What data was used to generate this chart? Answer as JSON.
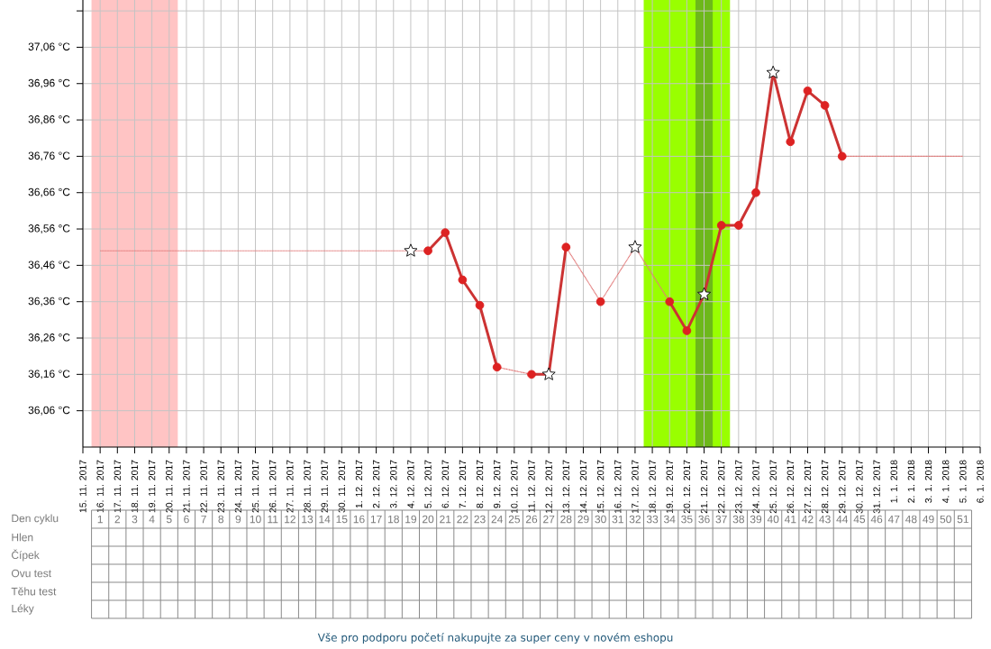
{
  "chart_data": {
    "type": "line",
    "xlim": [
      "2017-11-15",
      "2018-01-06"
    ],
    "xticks": [
      {
        "value": "2017-11-15",
        "label": "15. 11. 2017"
      },
      {
        "value": "2017-11-16",
        "label": "16. 11. 2017"
      },
      {
        "value": "2017-11-17",
        "label": "17. 11. 2017"
      },
      {
        "value": "2017-11-18",
        "label": "18. 11. 2017"
      },
      {
        "value": "2017-11-19",
        "label": "19. 11. 2017"
      },
      {
        "value": "2017-11-20",
        "label": "20. 11. 2017"
      },
      {
        "value": "2017-11-21",
        "label": "21. 11. 2017"
      },
      {
        "value": "2017-11-22",
        "label": "22. 11. 2017"
      },
      {
        "value": "2017-11-23",
        "label": "23. 11. 2017"
      },
      {
        "value": "2017-11-24",
        "label": "24. 11. 2017"
      },
      {
        "value": "2017-11-25",
        "label": "25. 11. 2017"
      },
      {
        "value": "2017-11-26",
        "label": "26. 11. 2017"
      },
      {
        "value": "2017-11-27",
        "label": "27. 11. 2017"
      },
      {
        "value": "2017-11-28",
        "label": "28. 11. 2017"
      },
      {
        "value": "2017-11-29",
        "label": "29. 11. 2017"
      },
      {
        "value": "2017-11-30",
        "label": "30. 11. 2017"
      },
      {
        "value": "2017-12-01",
        "label": "1. 12. 2017"
      },
      {
        "value": "2017-12-02",
        "label": "2. 12. 2017"
      },
      {
        "value": "2017-12-03",
        "label": "3. 12. 2017"
      },
      {
        "value": "2017-12-04",
        "label": "4. 12. 2017"
      },
      {
        "value": "2017-12-05",
        "label": "5. 12. 2017"
      },
      {
        "value": "2017-12-06",
        "label": "6. 12. 2017"
      },
      {
        "value": "2017-12-07",
        "label": "7. 12. 2017"
      },
      {
        "value": "2017-12-08",
        "label": "8. 12. 2017"
      },
      {
        "value": "2017-12-09",
        "label": "9. 12. 2017"
      },
      {
        "value": "2017-12-10",
        "label": "10. 12. 2017"
      },
      {
        "value": "2017-12-11",
        "label": "11. 12. 2017"
      },
      {
        "value": "2017-12-12",
        "label": "12. 12. 2017"
      },
      {
        "value": "2017-12-13",
        "label": "13. 12. 2017"
      },
      {
        "value": "2017-12-14",
        "label": "14. 12. 2017"
      },
      {
        "value": "2017-12-15",
        "label": "15. 12. 2017"
      },
      {
        "value": "2017-12-16",
        "label": "16. 12. 2017"
      },
      {
        "value": "2017-12-17",
        "label": "17. 12. 2017"
      },
      {
        "value": "2017-12-18",
        "label": "18. 12. 2017"
      },
      {
        "value": "2017-12-19",
        "label": "19. 12. 2017"
      },
      {
        "value": "2017-12-20",
        "label": "20. 12. 2017"
      },
      {
        "value": "2017-12-21",
        "label": "21. 12. 2017"
      },
      {
        "value": "2017-12-22",
        "label": "22. 12. 2017"
      },
      {
        "value": "2017-12-23",
        "label": "23. 12. 2017"
      },
      {
        "value": "2017-12-24",
        "label": "24. 12. 2017"
      },
      {
        "value": "2017-12-25",
        "label": "25. 12. 2017"
      },
      {
        "value": "2017-12-26",
        "label": "26. 12. 2017"
      },
      {
        "value": "2017-12-27",
        "label": "27. 12. 2017"
      },
      {
        "value": "2017-12-28",
        "label": "28. 12. 2017"
      },
      {
        "value": "2017-12-29",
        "label": "29. 12. 2017"
      },
      {
        "value": "2017-12-30",
        "label": "30. 12. 2017"
      },
      {
        "value": "2017-12-31",
        "label": "31. 12. 2017"
      },
      {
        "value": "2018-01-01",
        "label": "1. 1. 2018"
      },
      {
        "value": "2018-01-02",
        "label": "2. 1. 2018"
      },
      {
        "value": "2018-01-03",
        "label": "3. 1. 2018"
      },
      {
        "value": "2018-01-04",
        "label": "4. 1. 2018"
      },
      {
        "value": "2018-01-05",
        "label": "5. 1. 2018"
      },
      {
        "value": "2018-01-06",
        "label": "6. 1. 2018"
      }
    ],
    "ylim": [
      35.96,
      37.19
    ],
    "yticks": [
      {
        "value": 36.06,
        "label": "36,06 °C"
      },
      {
        "value": 36.16,
        "label": "36,16 °C"
      },
      {
        "value": 36.26,
        "label": "36,26 °C"
      },
      {
        "value": 36.36,
        "label": "36,36 °C"
      },
      {
        "value": 36.46,
        "label": "36,46 °C"
      },
      {
        "value": 36.56,
        "label": "36,56 °C"
      },
      {
        "value": 36.66,
        "label": "36,66 °C"
      },
      {
        "value": 36.76,
        "label": "36,76 °C"
      },
      {
        "value": 36.86,
        "label": "36,86 °C"
      },
      {
        "value": 36.96,
        "label": "36,96 °C"
      },
      {
        "value": 37.06,
        "label": "37,06 °C"
      },
      {
        "value": 37.16,
        "label": null
      }
    ],
    "grid": true,
    "x2lim": [
      "2017-11-15T12:00",
      "2018-01-05T12:00"
    ],
    "x2ticks": [
      {
        "value": "2017-11-16",
        "label": "1"
      },
      {
        "value": "2017-11-17",
        "label": "2"
      },
      {
        "value": "2017-11-18",
        "label": "3"
      },
      {
        "value": "2017-11-19",
        "label": "4"
      },
      {
        "value": "2017-11-20",
        "label": "5"
      },
      {
        "value": "2017-11-21",
        "label": "6"
      },
      {
        "value": "2017-11-22",
        "label": "7"
      },
      {
        "value": "2017-11-23",
        "label": "8"
      },
      {
        "value": "2017-11-24",
        "label": "9"
      },
      {
        "value": "2017-11-25",
        "label": "10"
      },
      {
        "value": "2017-11-26",
        "label": "11"
      },
      {
        "value": "2017-11-27",
        "label": "12"
      },
      {
        "value": "2017-11-28",
        "label": "13"
      },
      {
        "value": "2017-11-29",
        "label": "14"
      },
      {
        "value": "2017-11-30",
        "label": "15"
      },
      {
        "value": "2017-12-01",
        "label": "16"
      },
      {
        "value": "2017-12-02",
        "label": "17"
      },
      {
        "value": "2017-12-03",
        "label": "18"
      },
      {
        "value": "2017-12-04",
        "label": "19"
      },
      {
        "value": "2017-12-05",
        "label": "20"
      },
      {
        "value": "2017-12-06",
        "label": "21"
      },
      {
        "value": "2017-12-07",
        "label": "22"
      },
      {
        "value": "2017-12-08",
        "label": "23"
      },
      {
        "value": "2017-12-09",
        "label": "24"
      },
      {
        "value": "2017-12-10",
        "label": "25"
      },
      {
        "value": "2017-12-11",
        "label": "26"
      },
      {
        "value": "2017-12-12",
        "label": "27"
      },
      {
        "value": "2017-12-13",
        "label": "28"
      },
      {
        "value": "2017-12-14",
        "label": "29"
      },
      {
        "value": "2017-12-15",
        "label": "30"
      },
      {
        "value": "2017-12-16",
        "label": "31"
      },
      {
        "value": "2017-12-17",
        "label": "32"
      },
      {
        "value": "2017-12-18",
        "label": "33"
      },
      {
        "value": "2017-12-19",
        "label": "34"
      },
      {
        "value": "2017-12-20",
        "label": "35"
      },
      {
        "value": "2017-12-21",
        "label": "36"
      },
      {
        "value": "2017-12-22",
        "label": "37"
      },
      {
        "value": "2017-12-23",
        "label": "38"
      },
      {
        "value": "2017-12-24",
        "label": "39"
      },
      {
        "value": "2017-12-25",
        "label": "40"
      },
      {
        "value": "2017-12-26",
        "label": "41"
      },
      {
        "value": "2017-12-27",
        "label": "42"
      },
      {
        "value": "2017-12-28",
        "label": "43"
      },
      {
        "value": "2017-12-29",
        "label": "44"
      },
      {
        "value": "2017-12-30",
        "label": "45"
      },
      {
        "value": "2017-12-31",
        "label": "46"
      },
      {
        "value": "2018-01-01",
        "label": "47"
      },
      {
        "value": "2018-01-02",
        "label": "48"
      },
      {
        "value": "2018-01-03",
        "label": "49"
      },
      {
        "value": "2018-01-04",
        "label": "50"
      },
      {
        "value": "2018-01-05",
        "label": "51"
      }
    ],
    "bands": [
      {
        "axis": "x",
        "from": "2017-11-15T12:00",
        "to": "2017-11-20T12:00",
        "color": "#ffc4c4"
      },
      {
        "axis": "x",
        "from": "2017-12-17T12:00",
        "to": "2017-12-22T12:00",
        "color": "#99ff00"
      },
      {
        "axis": "x",
        "from": "2017-12-20T12:00",
        "to": "2017-12-21T12:00",
        "color": "#6db81a"
      }
    ],
    "series": [
      {
        "color": "#e27a7a",
        "line_style": "dotted",
        "marker": "none",
        "x": [
          "2017-11-16",
          "2017-12-04",
          "2017-12-05",
          "2017-12-06",
          "2017-12-09",
          "2017-12-11",
          "2017-12-12",
          "2017-12-13",
          "2017-12-15",
          "2017-12-17",
          "2017-12-19",
          "2017-12-20",
          "2017-12-29",
          "2018-01-05"
        ],
        "values": [
          36.5,
          36.5,
          36.5,
          null,
          36.18,
          36.16,
          null,
          36.51,
          36.36,
          36.51,
          36.36,
          null,
          36.76,
          36.76
        ]
      },
      {
        "color": "#cc3333",
        "line_style": "solid",
        "marker": "none",
        "x": [
          "2017-12-05",
          "2017-12-06",
          "2017-12-07",
          "2017-12-08",
          "2017-12-09",
          "2017-12-10",
          "2017-12-11",
          "2017-12-12",
          "2017-12-13",
          "2017-12-14",
          "2017-12-15",
          "2017-12-16",
          "2017-12-17",
          "2017-12-18",
          "2017-12-19",
          "2017-12-20",
          "2017-12-21",
          "2017-12-22",
          "2017-12-23",
          "2017-12-24",
          "2017-12-25",
          "2017-12-26",
          "2017-12-27",
          "2017-12-28",
          "2017-12-29"
        ],
        "values": [
          36.5,
          36.55,
          36.42,
          36.35,
          36.18,
          null,
          36.16,
          36.16,
          36.51,
          null,
          null,
          null,
          null,
          null,
          36.36,
          36.28,
          36.38,
          36.57,
          36.57,
          36.66,
          36.99,
          36.8,
          36.94,
          36.9,
          36.76
        ]
      },
      {
        "type": "scatter",
        "color": "#dd2222",
        "marker": "circle",
        "x": [
          "2017-12-05",
          "2017-12-06",
          "2017-12-07",
          "2017-12-08",
          "2017-12-09",
          "2017-12-11",
          "2017-12-13",
          "2017-12-15",
          "2017-12-19",
          "2017-12-20",
          "2017-12-22",
          "2017-12-23",
          "2017-12-24",
          "2017-12-26",
          "2017-12-27",
          "2017-12-28",
          "2017-12-29"
        ],
        "values": [
          36.5,
          36.55,
          36.42,
          36.35,
          36.18,
          36.16,
          36.51,
          36.36,
          36.36,
          36.28,
          36.57,
          36.57,
          36.66,
          36.8,
          36.94,
          36.9,
          36.76
        ]
      },
      {
        "type": "scatter",
        "color": "#ffffff",
        "marker": "star",
        "x": [
          "2017-12-04",
          "2017-12-12",
          "2017-12-17",
          "2017-12-21",
          "2017-12-25"
        ],
        "values": [
          36.5,
          36.16,
          36.51,
          36.38,
          36.99
        ]
      }
    ],
    "annotations": [
      "Den cyklu",
      "Hlen",
      "Čípek",
      "Ovu test",
      "Těhu test",
      "Léky",
      "Vše pro podporu početí nakupujte za super ceny v novém eshopu"
    ]
  }
}
